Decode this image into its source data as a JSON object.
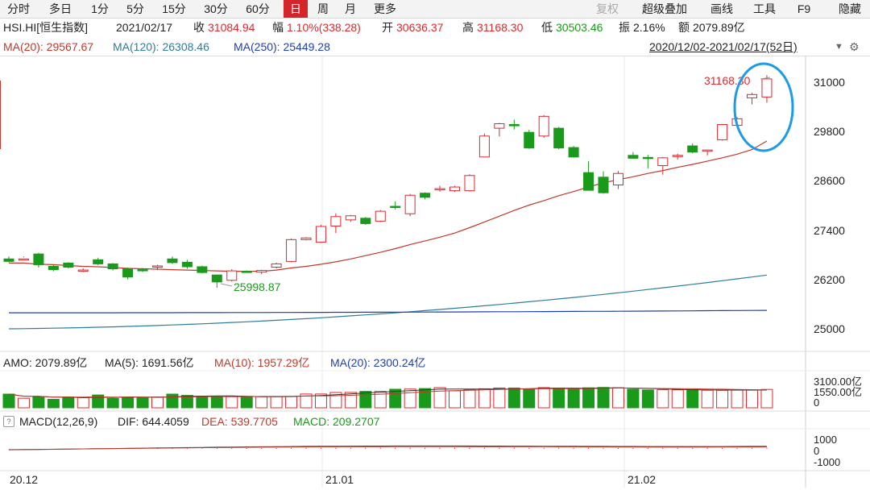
{
  "toolbar": {
    "periods": [
      "分时",
      "多日",
      "1分",
      "5分",
      "15分",
      "30分",
      "60分",
      "日",
      "周",
      "月",
      "更多"
    ],
    "active_period": "日",
    "right": [
      "复权",
      "超级叠加",
      "画线",
      "工具",
      "F9",
      "隐藏"
    ]
  },
  "quote": {
    "symbol": "HSI.HI[恒生指数]",
    "date": "2021/02/17",
    "close_label": "收",
    "close": "31084.94",
    "change_label": "幅",
    "change": "1.10%(338.28)",
    "open_label": "开",
    "open": "30636.37",
    "high_label": "高",
    "high": "31168.30",
    "low_label": "低",
    "low": "30503.46",
    "amp_label": "振",
    "amp": "2.16%",
    "amt_label": "额",
    "amt": "2079.89亿"
  },
  "ma": {
    "ma20": "MA(20): 29567.67",
    "ma120": "MA(120): 26308.46",
    "ma250": "MA(250): 25449.28",
    "range": "2020/12/02-2021/02/17(52日)"
  },
  "price_axis": [
    "31000",
    "29800",
    "28600",
    "27400",
    "26200",
    "25000"
  ],
  "annotations": {
    "high": "31168.30",
    "low": "25998.87"
  },
  "volume": {
    "amo": "AMO: 2079.89亿",
    "ma5": "MA(5): 1691.56亿",
    "ma10": "MA(10): 1957.29亿",
    "ma20": "MA(20): 2300.24亿",
    "axis": [
      "3100.00亿",
      "1550.00亿",
      "0"
    ]
  },
  "macd": {
    "label": "MACD(12,26,9)",
    "dif": "DIF: 644.4059",
    "dea": "DEA: 539.7705",
    "macd": "MACD: 209.2707",
    "axis": [
      "1000",
      "0",
      "-1000"
    ]
  },
  "dates": [
    "20.12",
    "21.01",
    "21.02"
  ],
  "colors": {
    "up": "#e0282e",
    "down": "#1a9a1a",
    "ma20": "#c0392b",
    "ma120": "#2e7d9a",
    "ma250": "#1f3fb0",
    "highlight": "#1e9be6"
  },
  "chart_data": {
    "type": "candlestick",
    "price_range": [
      24900,
      31500
    ],
    "candles": [
      [
        26700,
        26760,
        26640,
        26620,
        "d"
      ],
      [
        26690,
        26760,
        26700,
        26740,
        "u"
      ],
      [
        26820,
        26850,
        26560,
        26490,
        "d"
      ],
      [
        26520,
        26550,
        26440,
        26400,
        "d"
      ],
      [
        26600,
        26620,
        26500,
        26470,
        "d"
      ],
      [
        26430,
        26470,
        26410,
        26380,
        "u"
      ],
      [
        26680,
        26730,
        26580,
        26550,
        "d"
      ],
      [
        26580,
        26600,
        26460,
        26420,
        "d"
      ],
      [
        26460,
        26490,
        26260,
        26200,
        "d"
      ],
      [
        26420,
        26480,
        26440,
        26380,
        "d"
      ],
      [
        26530,
        26560,
        26510,
        26430,
        "u"
      ],
      [
        26700,
        26760,
        26610,
        26580,
        "d"
      ],
      [
        26620,
        26680,
        26510,
        26460,
        "d"
      ],
      [
        26510,
        26540,
        26370,
        26350,
        "d"
      ],
      [
        26310,
        26320,
        26140,
        26000,
        "d"
      ],
      [
        26180,
        26450,
        26410,
        26150,
        "u"
      ],
      [
        26380,
        26420,
        26400,
        26360,
        "d"
      ],
      [
        26380,
        26440,
        26420,
        26330,
        "u"
      ],
      [
        26500,
        26610,
        26580,
        26470,
        "u"
      ],
      [
        26640,
        27200,
        27170,
        26620,
        "u"
      ],
      [
        27170,
        27230,
        27210,
        27150,
        "u"
      ],
      [
        27110,
        27530,
        27490,
        27090,
        "u"
      ],
      [
        27500,
        27810,
        27730,
        27330,
        "u"
      ],
      [
        27650,
        27770,
        27750,
        27600,
        "u"
      ],
      [
        27690,
        27720,
        27560,
        27530,
        "d"
      ],
      [
        27620,
        27890,
        27860,
        27600,
        "u"
      ],
      [
        27980,
        28100,
        27960,
        27900,
        "d"
      ],
      [
        27800,
        28280,
        28250,
        27740,
        "u"
      ],
      [
        28300,
        28320,
        28200,
        28150,
        "d"
      ],
      [
        28380,
        28480,
        28410,
        28340,
        "u"
      ],
      [
        28360,
        28480,
        28450,
        28330,
        "u"
      ],
      [
        28360,
        28760,
        28730,
        28340,
        "u"
      ],
      [
        29180,
        29750,
        29690,
        29170,
        "u"
      ],
      [
        29880,
        30010,
        29990,
        29680,
        "u"
      ],
      [
        29970,
        30090,
        29940,
        29850,
        "d"
      ],
      [
        29780,
        29840,
        29400,
        29380,
        "d"
      ],
      [
        29690,
        30200,
        30170,
        29650,
        "u"
      ],
      [
        29880,
        29910,
        29400,
        29370,
        "d"
      ],
      [
        29410,
        29450,
        29180,
        29170,
        "d"
      ],
      [
        28800,
        29080,
        28370,
        28390,
        "d"
      ],
      [
        28690,
        28830,
        28310,
        28290,
        "d"
      ],
      [
        28500,
        28840,
        28780,
        28400,
        "u"
      ],
      [
        29220,
        29300,
        29150,
        29140,
        "d"
      ],
      [
        29170,
        29230,
        29150,
        28900,
        "d"
      ],
      [
        28970,
        29180,
        29160,
        28750,
        "u"
      ],
      [
        29220,
        29260,
        29210,
        29120,
        "u"
      ],
      [
        29450,
        29510,
        29300,
        29270,
        "d"
      ],
      [
        29320,
        29360,
        29350,
        29220,
        "u"
      ],
      [
        29600,
        29980,
        29970,
        29580,
        "u"
      ],
      [
        29950,
        30150,
        30110,
        29920,
        "u"
      ],
      [
        30620,
        30740,
        30700,
        30460,
        "u"
      ],
      [
        30640,
        31170,
        31080,
        30500,
        "u"
      ]
    ],
    "volumes": [
      1550,
      1080,
      1260,
      960,
      1220,
      1160,
      1450,
      1050,
      1210,
      1130,
      1210,
      1550,
      1400,
      1300,
      1230,
      1260,
      1280,
      1250,
      1270,
      1280,
      1560,
      1560,
      1730,
      1740,
      1860,
      1850,
      2100,
      2120,
      2180,
      2280,
      1920,
      2060,
      2150,
      2240,
      2240,
      2130,
      2280,
      2220,
      2210,
      2260,
      2300,
      2270,
      2100,
      2020,
      2040,
      2030,
      2040,
      1990,
      1980,
      2000,
      2000,
      2079.89
    ],
    "ma20_line": [
      26600,
      26600,
      26570,
      26560,
      26540,
      26520,
      26510,
      26490,
      26470,
      26460,
      26450,
      26440,
      26430,
      26420,
      26410,
      26400,
      26400,
      26400,
      26430,
      26480,
      26520,
      26570,
      26630,
      26700,
      26780,
      26860,
      26950,
      27050,
      27140,
      27230,
      27330,
      27460,
      27600,
      27740,
      27880,
      28010,
      28120,
      28240,
      28340,
      28450,
      28550,
      28630,
      28700,
      28780,
      28850,
      28930,
      29000,
      29080,
      29160,
      29250,
      29360,
      29567.67
    ],
    "ma120_start": 25000,
    "ma120_end": 26308.46,
    "ma250_start": 25390,
    "ma250_end": 25449.28,
    "macd_axis_range": [
      -1000,
      1000
    ]
  }
}
